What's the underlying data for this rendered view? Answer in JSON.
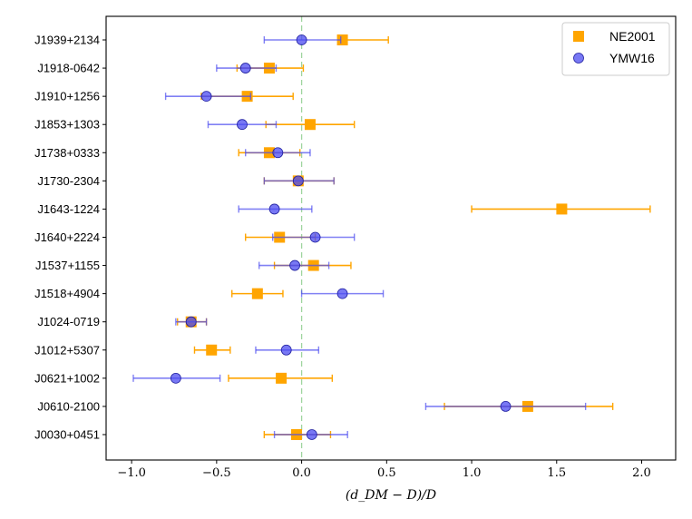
{
  "chart_data": {
    "type": "scatter",
    "title": "",
    "xlabel": "(d_DM − D)/D",
    "ylabel": "",
    "xlim": [
      -1.15,
      2.2
    ],
    "xticks": [
      -1.0,
      -0.5,
      0.0,
      0.5,
      1.0,
      1.5,
      2.0
    ],
    "xtick_labels": [
      "−1.0",
      "−0.5",
      "0.0",
      "0.5",
      "1.0",
      "1.5",
      "2.0"
    ],
    "reference_line_x": 0.0,
    "legend_position": "top-right",
    "categories": [
      "J1939+2134",
      "J1918-0642",
      "J1910+1256",
      "J1853+1303",
      "J1738+0333",
      "J1730-2304",
      "J1643-1224",
      "J1640+2224",
      "J1537+1155",
      "J1518+4904",
      "J1024-0719",
      "J1012+5307",
      "J0621+1002",
      "J0610-2100",
      "J0030+0451"
    ],
    "series": [
      {
        "name": "NE2001",
        "color": "#FFA500",
        "marker": "square",
        "values": [
          0.24,
          -0.19,
          -0.32,
          0.05,
          -0.19,
          -0.02,
          1.53,
          -0.13,
          0.07,
          -0.26,
          -0.65,
          -0.53,
          -0.12,
          1.33,
          -0.03
        ],
        "err_low": [
          0.22,
          -0.38,
          -0.59,
          -0.21,
          -0.37,
          -0.22,
          1.0,
          -0.33,
          -0.16,
          -0.41,
          -0.73,
          -0.63,
          -0.43,
          0.84,
          -0.22
        ],
        "err_high": [
          0.51,
          0.01,
          -0.05,
          0.31,
          -0.01,
          0.19,
          2.05,
          0.08,
          0.29,
          -0.11,
          -0.56,
          -0.42,
          0.18,
          1.83,
          0.17
        ]
      },
      {
        "name": "YMW16",
        "color": "#4B4BF0",
        "marker": "circle",
        "values": [
          0.0,
          -0.33,
          -0.56,
          -0.35,
          -0.14,
          -0.02,
          -0.16,
          0.08,
          -0.04,
          0.24,
          -0.65,
          -0.09,
          -0.74,
          1.2,
          0.06
        ],
        "err_low": [
          -0.22,
          -0.5,
          -0.8,
          -0.55,
          -0.33,
          -0.22,
          -0.37,
          -0.17,
          -0.25,
          0.0,
          -0.74,
          -0.27,
          -0.99,
          0.73,
          -0.16
        ],
        "err_high": [
          0.23,
          -0.15,
          -0.3,
          -0.15,
          0.05,
          0.19,
          0.06,
          0.31,
          0.16,
          0.48,
          -0.56,
          0.1,
          -0.48,
          1.67,
          0.27
        ]
      }
    ]
  }
}
